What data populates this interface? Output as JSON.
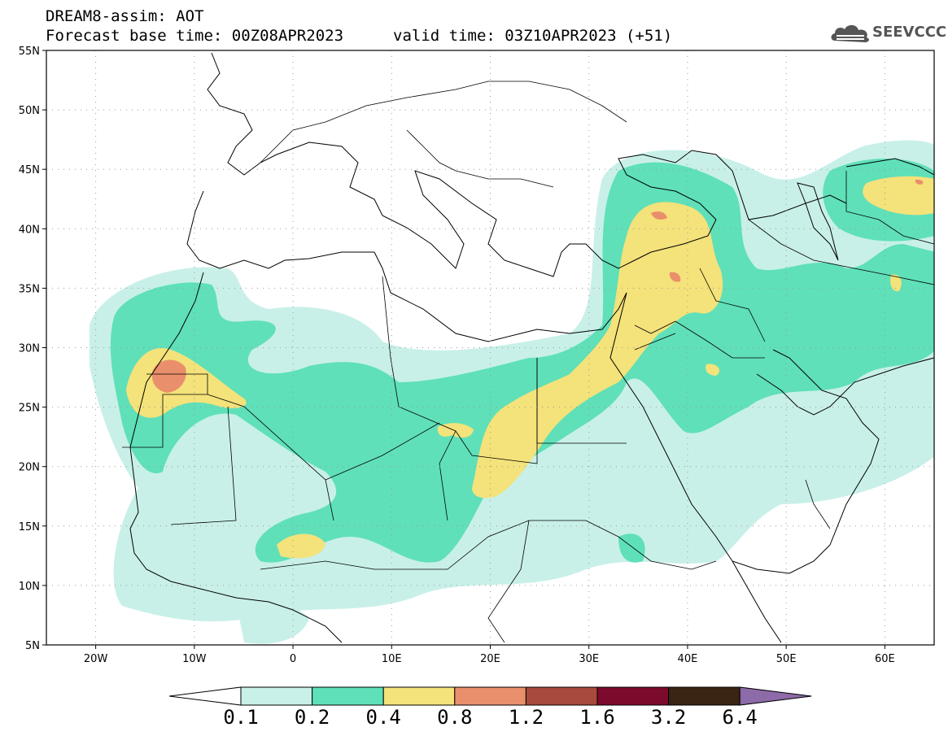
{
  "header": {
    "line1": "DREAM8-assim: AOT",
    "line2": "Forecast base time: 00Z08APR2023",
    "valid": "valid time: 03Z10APR2023 (+51)"
  },
  "logo": {
    "text": "SEEVCCC",
    "icon": "cloud-icon"
  },
  "map": {
    "lon_range": [
      -25,
      65
    ],
    "lat_range": [
      5,
      55
    ],
    "lat_labels": [
      "55N",
      "50N",
      "45N",
      "40N",
      "35N",
      "30N",
      "25N",
      "20N",
      "15N",
      "10N",
      "5N"
    ],
    "lon_labels": [
      "20W",
      "10W",
      "0",
      "10E",
      "20E",
      "30E",
      "40E",
      "50E",
      "60E"
    ],
    "grid": "dotted"
  },
  "colorbar": {
    "thresholds": [
      "0.1",
      "0.2",
      "0.4",
      "0.8",
      "1.2",
      "1.6",
      "3.2",
      "6.4"
    ],
    "colors": [
      "#c8f0e8",
      "#5fe0b8",
      "#f4e27a",
      "#e98f6b",
      "#a84a3c",
      "#7c0a2c",
      "#3a2414",
      "#8d6aa8"
    ],
    "under_color": "#ffffff"
  },
  "colors": {
    "aot_0_1": "#c8f0e8",
    "aot_0_2": "#5fe0b8",
    "aot_0_4": "#f4e27a",
    "aot_0_8": "#e98f6b"
  }
}
